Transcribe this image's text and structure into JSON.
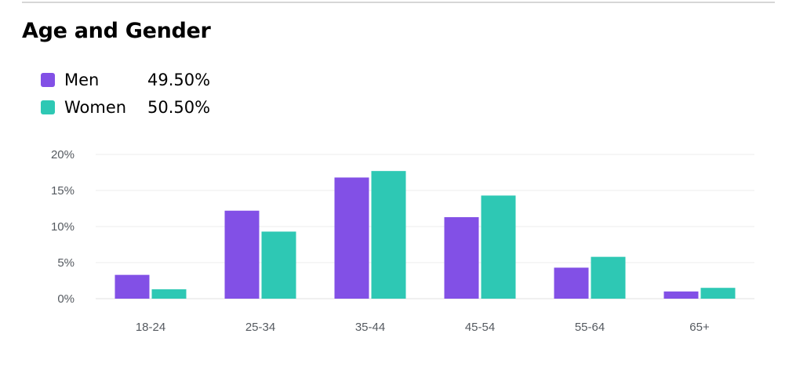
{
  "chart_data": {
    "type": "bar",
    "title": "Age and Gender",
    "categories": [
      "18-24",
      "25-34",
      "35-44",
      "45-54",
      "55-64",
      "65+"
    ],
    "series": [
      {
        "name": "Men",
        "color": "#8250e6",
        "values": [
          3.3,
          12.2,
          16.8,
          11.3,
          4.3,
          1.0
        ]
      },
      {
        "name": "Women",
        "color": "#2ec8b4",
        "values": [
          1.3,
          9.3,
          17.7,
          14.3,
          5.8,
          1.5
        ]
      }
    ],
    "ylim": [
      0,
      20
    ],
    "yticks": [
      0,
      5,
      10,
      15,
      20
    ],
    "ytick_labels": [
      "0%",
      "5%",
      "10%",
      "15%",
      "20%"
    ],
    "grid": true,
    "legend": [
      {
        "name": "Men",
        "value": "49.50%",
        "color": "#8250e6"
      },
      {
        "name": "Women",
        "value": "50.50%",
        "color": "#2ec8b4"
      }
    ]
  }
}
